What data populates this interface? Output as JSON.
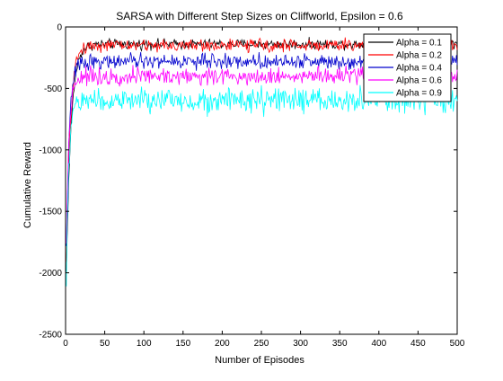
{
  "chart_data": {
    "type": "line",
    "title": "SARSA with Different Step Sizes on Cliffworld, Epsilon = 0.6",
    "xlabel": "Number of Episodes",
    "ylabel": "Cumulative Reward",
    "xlim": [
      0,
      500
    ],
    "ylim": [
      -2500,
      0
    ],
    "xticks": [
      0,
      50,
      100,
      150,
      200,
      250,
      300,
      350,
      400,
      450,
      500
    ],
    "yticks": [
      0,
      -500,
      -1000,
      -1500,
      -2000,
      -2500
    ],
    "xtick_labels": [
      "0",
      "50",
      "100",
      "150",
      "200",
      "250",
      "300",
      "350",
      "400",
      "450",
      "500"
    ],
    "ytick_labels": [
      "0",
      "-500",
      "-1000",
      "-1500",
      "-2000",
      "-2500"
    ],
    "grid": false,
    "legend_position": "top-right",
    "series": [
      {
        "name": "Alpha = 0.1",
        "color": "#000000",
        "start": -2000,
        "plateau": -140,
        "rate": 6,
        "noise": 20
      },
      {
        "name": "Alpha = 0.2",
        "color": "#ff0000",
        "start": -1950,
        "plateau": -150,
        "rate": 5,
        "noise": 25
      },
      {
        "name": "Alpha = 0.4",
        "color": "#0000cd",
        "start": -1800,
        "plateau": -280,
        "rate": 4,
        "noise": 30
      },
      {
        "name": "Alpha = 0.6",
        "color": "#ff00ff",
        "start": -1750,
        "plateau": -400,
        "rate": 3.5,
        "noise": 35
      },
      {
        "name": "Alpha = 0.9",
        "color": "#00ffff",
        "start": -2150,
        "plateau": -600,
        "rate": 3,
        "noise": 50
      }
    ]
  }
}
